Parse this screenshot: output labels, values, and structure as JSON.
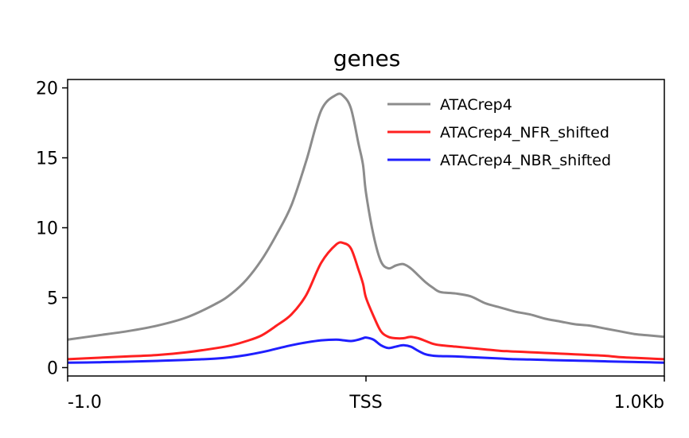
{
  "chart_data": {
    "type": "line",
    "title": "genes",
    "xlabel": "",
    "ylabel": "",
    "x_ticks": [
      "-1.0",
      "TSS",
      "1.0Kb"
    ],
    "x_tick_values": [
      -1000,
      0,
      1000
    ],
    "xlim": [
      -1000,
      1000
    ],
    "ylim": [
      -0.6,
      20.6
    ],
    "y_ticks": [
      0,
      5,
      10,
      15,
      20
    ],
    "y_tick_labels": [
      "0",
      "5",
      "10",
      "15",
      "20"
    ],
    "grid": false,
    "legend_position": "top-right",
    "x": [
      -1000,
      -900,
      -800,
      -700,
      -600,
      -500,
      -450,
      -400,
      -350,
      -300,
      -250,
      -200,
      -150,
      -100,
      -75,
      -50,
      -25,
      -10,
      0,
      25,
      50,
      75,
      100,
      125,
      150,
      175,
      200,
      225,
      250,
      300,
      350,
      400,
      450,
      500,
      550,
      600,
      650,
      700,
      750,
      800,
      850,
      900,
      950,
      1000
    ],
    "series": [
      {
        "name": "ATACrep4",
        "color": "#8c8c8c",
        "values": [
          2.0,
          2.3,
          2.6,
          3.0,
          3.6,
          4.6,
          5.3,
          6.3,
          7.7,
          9.5,
          11.6,
          14.8,
          18.4,
          19.5,
          19.4,
          18.5,
          16.0,
          14.5,
          12.5,
          9.5,
          7.6,
          7.1,
          7.3,
          7.4,
          7.1,
          6.6,
          6.1,
          5.7,
          5.4,
          5.3,
          5.1,
          4.6,
          4.3,
          4.0,
          3.8,
          3.5,
          3.3,
          3.1,
          3.0,
          2.8,
          2.6,
          2.4,
          2.3,
          2.2
        ]
      },
      {
        "name": "ATACrep4_NFR_shifted",
        "color": "#ff2020",
        "values": [
          0.6,
          0.7,
          0.8,
          0.9,
          1.1,
          1.4,
          1.6,
          1.9,
          2.3,
          3.0,
          3.8,
          5.2,
          7.5,
          8.8,
          8.9,
          8.5,
          7.0,
          6.0,
          5.0,
          3.7,
          2.6,
          2.2,
          2.1,
          2.1,
          2.2,
          2.1,
          1.9,
          1.7,
          1.6,
          1.5,
          1.4,
          1.3,
          1.2,
          1.15,
          1.1,
          1.05,
          1.0,
          0.95,
          0.9,
          0.85,
          0.75,
          0.7,
          0.65,
          0.6
        ]
      },
      {
        "name": "ATACrep4_NBR_shifted",
        "color": "#1f1fff",
        "values": [
          0.35,
          0.38,
          0.42,
          0.48,
          0.55,
          0.65,
          0.75,
          0.9,
          1.1,
          1.35,
          1.6,
          1.8,
          1.95,
          2.0,
          1.95,
          1.9,
          2.0,
          2.1,
          2.15,
          2.0,
          1.6,
          1.4,
          1.5,
          1.6,
          1.5,
          1.2,
          0.95,
          0.85,
          0.82,
          0.8,
          0.75,
          0.7,
          0.65,
          0.6,
          0.58,
          0.55,
          0.52,
          0.5,
          0.48,
          0.45,
          0.42,
          0.4,
          0.38,
          0.35
        ]
      }
    ]
  }
}
